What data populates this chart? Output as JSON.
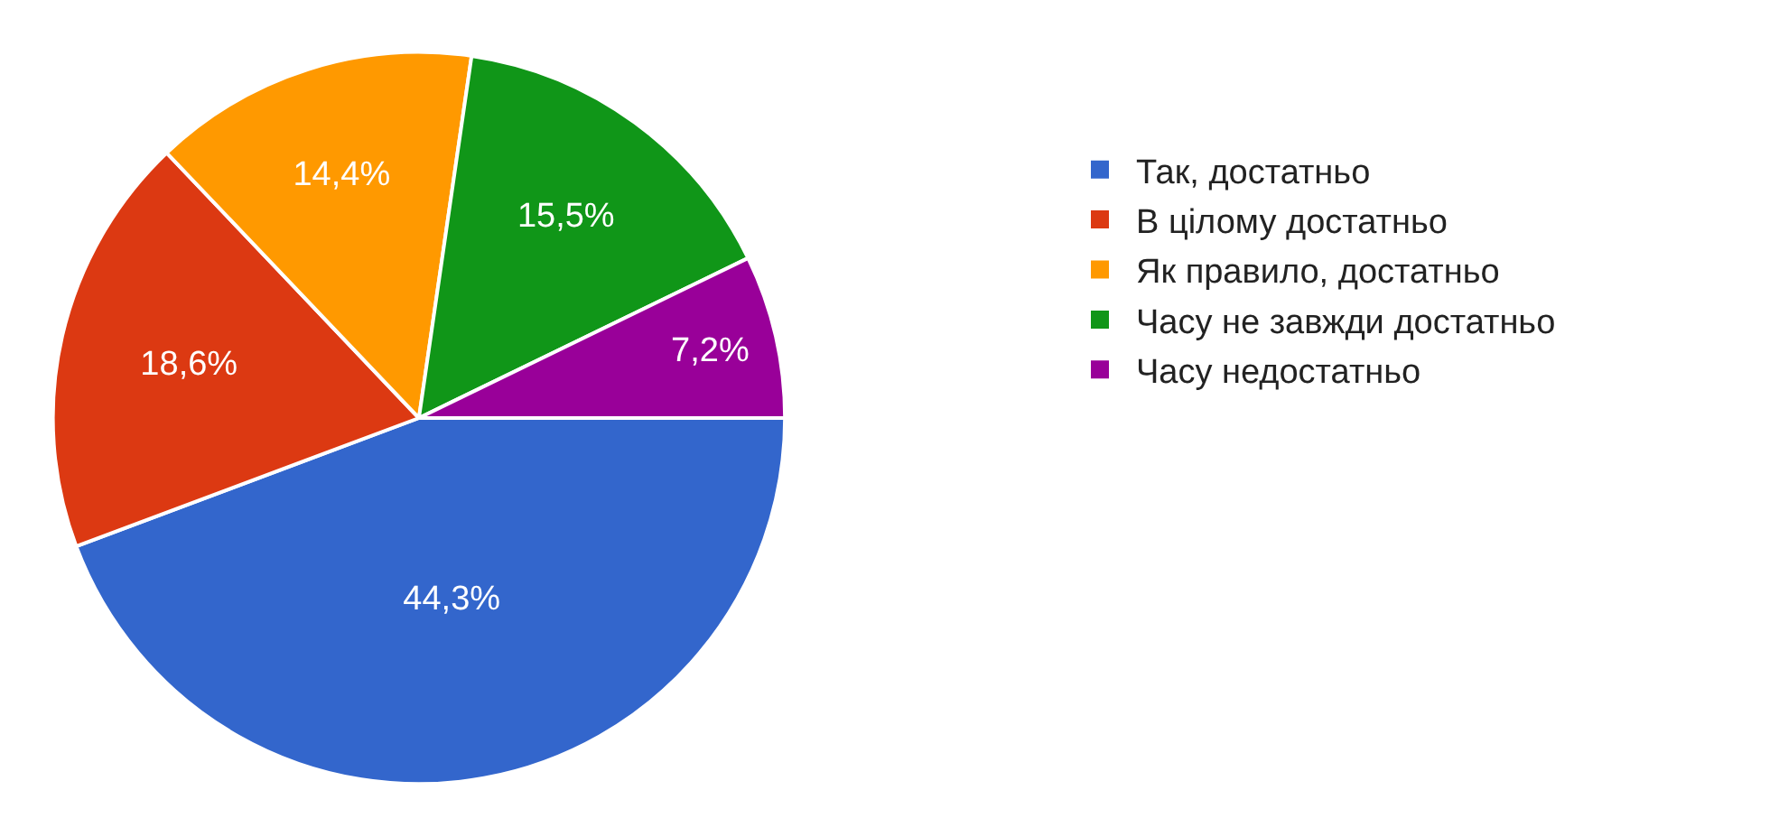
{
  "chart_data": {
    "type": "pie",
    "categories": [
      "Так, достатньо",
      "В цілому достатньо",
      "Як правило, достатньо",
      "Часу не завжди достатньо",
      "Часу недостатньо"
    ],
    "values": [
      44.3,
      18.6,
      14.4,
      15.5,
      7.2
    ],
    "value_labels": [
      "44,3%",
      "18,6%",
      "14,4%",
      "15,5%",
      "7,2%"
    ],
    "colors": [
      "#3366cc",
      "#dc3912",
      "#ff9900",
      "#109618",
      "#990099"
    ],
    "legend": "right"
  }
}
